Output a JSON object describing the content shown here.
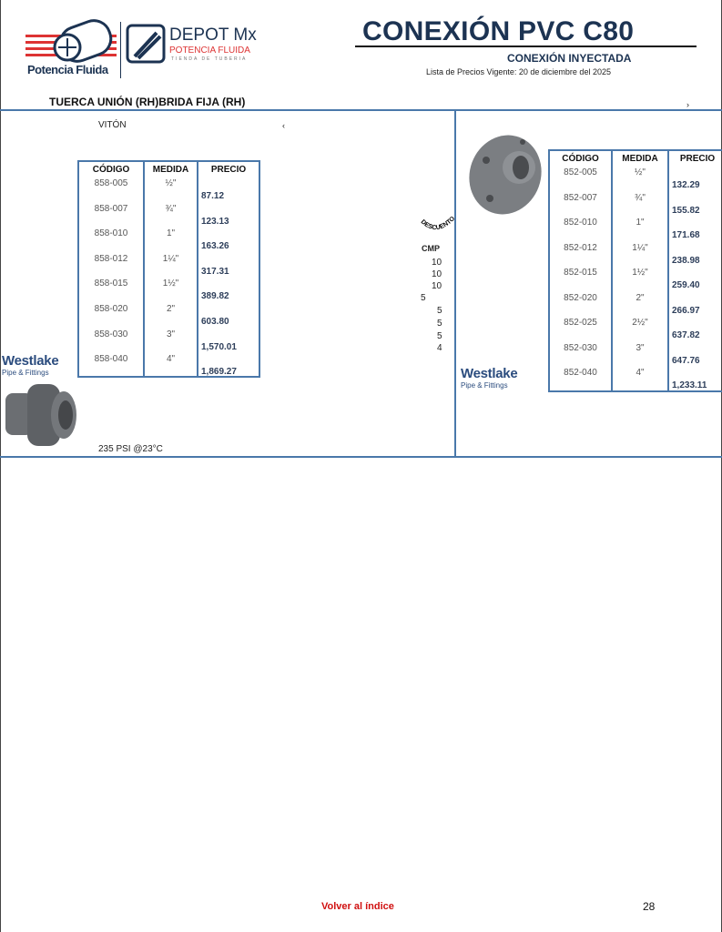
{
  "header": {
    "logo_left_text": "Potencia Fluida",
    "logo_right_title": "DEPOT Mx",
    "logo_right_sub": "POTENCIA FLUIDA",
    "logo_right_tag": "TIENDA DE TUBERIA",
    "title": "CONEXIÓN PVC C80",
    "subtitle": "CONEXIÓN INYECTADA",
    "price_list": "Lista de Precios Vigente:  20 de diciembre del 2025"
  },
  "section_title": "TUERCA UNIÓN (RH)BRIDA FIJA (RH)",
  "stray_marks": [
    "‹",
    "›"
  ],
  "left": {
    "note": "VITÓN",
    "footnote": "235 PSI @23°C",
    "brand": "Westlake",
    "brand_sub": "Pipe & Fittings",
    "headers": [
      "CÓDIGO",
      "MEDIDA",
      "PRECIO"
    ],
    "rows": [
      {
        "code": "858-005",
        "size": "½\"",
        "price": "87.12"
      },
      {
        "code": "858-007",
        "size": "¾\"",
        "price": "123.13"
      },
      {
        "code": "858-010",
        "size": "1\"",
        "price": "163.26"
      },
      {
        "code": "858-012",
        "size": "1¼\"",
        "price": "317.31"
      },
      {
        "code": "858-015",
        "size": "1½\"",
        "price": "389.82"
      },
      {
        "code": "858-020",
        "size": "2\"",
        "price": "603.80"
      },
      {
        "code": "858-030",
        "size": "3\"",
        "price": "1,570.01"
      },
      {
        "code": "858-040",
        "size": "4\"",
        "price": "1,869.27"
      }
    ]
  },
  "discount": {
    "label": "DESCUENTO",
    "header": "CMP",
    "values": [
      "10",
      "10",
      "10",
      "5",
      "5",
      "5",
      "5",
      "4"
    ]
  },
  "right": {
    "brand": "Westlake",
    "brand_sub": "Pipe & Fittings",
    "headers": [
      "CÓDIGO",
      "MEDIDA",
      "PRECIO"
    ],
    "rows": [
      {
        "code": "852-005",
        "size": "½\"",
        "price": "132.29"
      },
      {
        "code": "852-007",
        "size": "¾\"",
        "price": "155.82"
      },
      {
        "code": "852-010",
        "size": "1\"",
        "price": "171.68"
      },
      {
        "code": "852-012",
        "size": "1¼\"",
        "price": "238.98"
      },
      {
        "code": "852-015",
        "size": "1½\"",
        "price": "259.40"
      },
      {
        "code": "852-020",
        "size": "2\"",
        "price": "266.97"
      },
      {
        "code": "852-025",
        "size": "2½\"",
        "price": "637.82"
      },
      {
        "code": "852-030",
        "size": "3\"",
        "price": "647.76"
      },
      {
        "code": "852-040",
        "size": "4\"",
        "price": "1,233.11"
      }
    ]
  },
  "footer": {
    "back_link": "Volver al índice",
    "page_number": "28"
  },
  "colors": {
    "brand_navy": "#1c3352",
    "rule_blue": "#4a78aa",
    "link_red": "#d01010"
  }
}
